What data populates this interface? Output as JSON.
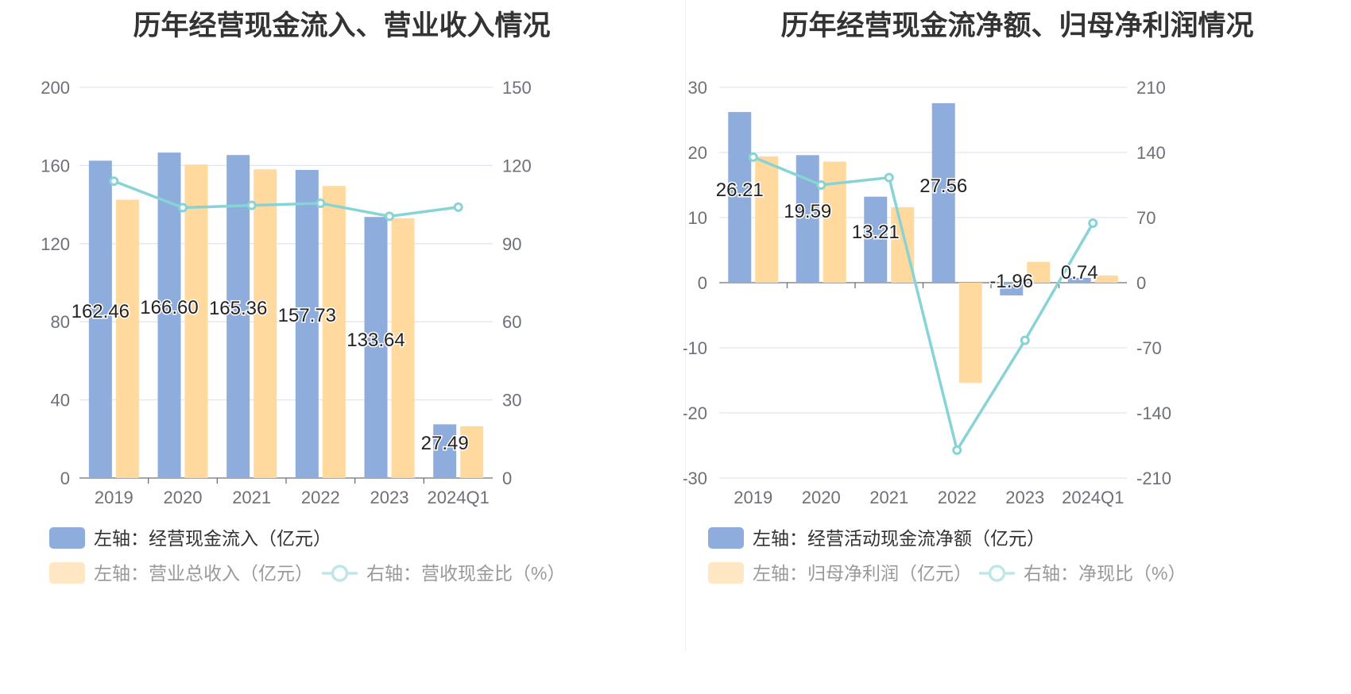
{
  "chart_data": [
    {
      "type": "bar",
      "title": "历年经营现金流入、营业收入情况",
      "categories": [
        "2019",
        "2020",
        "2021",
        "2022",
        "2023",
        "2024Q1"
      ],
      "left_axis": {
        "ticks": [
          "0",
          "40",
          "80",
          "120",
          "160",
          "200"
        ],
        "range": [
          0,
          200
        ]
      },
      "right_axis": {
        "ticks": [
          "0",
          "30",
          "60",
          "90",
          "120",
          "150"
        ],
        "range": [
          0,
          150
        ]
      },
      "series": [
        {
          "name": "左轴：经营现金流入（亿元）",
          "type": "bar",
          "axis": "left",
          "color": "#8eaddc",
          "values": [
            162.46,
            166.6,
            165.36,
            157.73,
            133.64,
            27.49
          ],
          "labels": [
            "162.46",
            "166.60",
            "165.36",
            "157.73",
            "133.64",
            "27.49"
          ]
        },
        {
          "name": "左轴：营业总收入（亿元）",
          "type": "bar",
          "axis": "left",
          "color": "#ffd99e",
          "values": [
            142.5,
            160.5,
            158.0,
            149.5,
            133.0,
            26.5
          ]
        },
        {
          "name": "右轴：营收现金比（%）",
          "type": "line",
          "axis": "right",
          "color": "#88d3d5",
          "values": [
            114.0,
            103.8,
            104.7,
            105.5,
            100.5,
            104.0
          ]
        }
      ]
    },
    {
      "type": "bar",
      "title": "历年经营现金流净额、归母净利润情况",
      "categories": [
        "2019",
        "2020",
        "2021",
        "2022",
        "2023",
        "2024Q1"
      ],
      "left_axis": {
        "ticks": [
          "-30",
          "-20",
          "-10",
          "0",
          "10",
          "20",
          "30"
        ],
        "range": [
          -30,
          30
        ]
      },
      "right_axis": {
        "ticks": [
          "-210",
          "-140",
          "-70",
          "0",
          "70",
          "140",
          "210"
        ],
        "range": [
          -210,
          210
        ]
      },
      "series": [
        {
          "name": "左轴：经营活动现金流净额（亿元）",
          "type": "bar",
          "axis": "left",
          "color": "#8eaddc",
          "values": [
            26.21,
            19.59,
            13.21,
            27.56,
            -1.96,
            0.74
          ],
          "labels": [
            "26.21",
            "19.59",
            "13.21",
            "27.56",
            "-1.96",
            "0.74"
          ]
        },
        {
          "name": "左轴：归母净利润（亿元）",
          "type": "bar",
          "axis": "left",
          "color": "#ffd99e",
          "values": [
            19.4,
            18.6,
            11.6,
            -15.4,
            3.2,
            1.1
          ]
        },
        {
          "name": "右轴：净现比（%）",
          "type": "line",
          "axis": "right",
          "color": "#88d3d5",
          "values": [
            135.0,
            105.0,
            113.0,
            -180.0,
            -62.0,
            64.0
          ]
        }
      ]
    }
  ]
}
